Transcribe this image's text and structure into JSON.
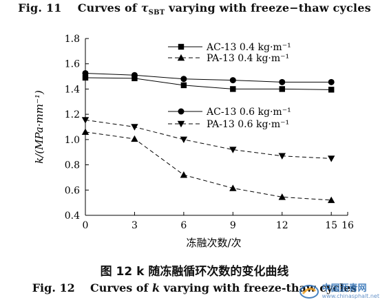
{
  "header": {
    "caption_prefix": "Fig. 11",
    "caption_before_symbol": "Curves of ",
    "caption_symbol": "τ",
    "caption_subscript": "SBT",
    "caption_after_symbol": " varying with freeze−thaw cycles"
  },
  "footer": {
    "cn_caption": "图 12   k 随冻融循环次数的变化曲线",
    "en_caption_prefix": "Fig. 12",
    "en_caption_before": "Curves of ",
    "en_caption_k": "k",
    "en_caption_after": " varying with freeze-thaw cycles"
  },
  "watermark": {
    "text": "中国沥青网",
    "url": "www.chinasphalt.net"
  },
  "chart_data": {
    "type": "line",
    "xlabel": "冻融次数/次",
    "ylabel": "k/(MPa·mm⁻¹)",
    "xlim": [
      0,
      16
    ],
    "ylim": [
      0.4,
      1.8
    ],
    "xticks": [
      0,
      3,
      6,
      9,
      12,
      15,
      16
    ],
    "yticks": [
      0.4,
      0.6,
      0.8,
      1.0,
      1.2,
      1.4,
      1.6,
      1.8
    ],
    "xtick_labels": [
      "0",
      "3",
      "6",
      "9",
      "12",
      "15",
      "16"
    ],
    "ytick_labels": [
      "0.4",
      "0.6",
      "0.8",
      "1.0",
      "1.2",
      "1.4",
      "1.6",
      "1.8"
    ],
    "grid": false,
    "legend_placement": "top-right, two groups",
    "series": [
      {
        "name": "AC-13 0.4 kg·m⁻¹",
        "marker": "square",
        "dash": "solid",
        "color": "#000000",
        "x": [
          0,
          3,
          6,
          9,
          12,
          15
        ],
        "y": [
          1.49,
          1.485,
          1.43,
          1.4,
          1.4,
          1.395
        ]
      },
      {
        "name": "PA-13 0.4 kg·m⁻¹",
        "marker": "triangle-up",
        "dash": "dashed",
        "color": "#000000",
        "x": [
          0,
          3,
          6,
          9,
          12,
          15
        ],
        "y": [
          1.06,
          1.005,
          0.72,
          0.615,
          0.545,
          0.52
        ]
      },
      {
        "name": "AC-13 0.6 kg·m⁻¹",
        "marker": "circle",
        "dash": "solid",
        "color": "#000000",
        "x": [
          0,
          3,
          6,
          9,
          12,
          15
        ],
        "y": [
          1.525,
          1.51,
          1.48,
          1.47,
          1.455,
          1.455
        ]
      },
      {
        "name": "PA-13 0.6 kg·m⁻¹",
        "marker": "triangle-down",
        "dash": "dashed",
        "color": "#000000",
        "x": [
          0,
          3,
          6,
          9,
          12,
          15
        ],
        "y": [
          1.155,
          1.1,
          1.0,
          0.92,
          0.87,
          0.85
        ]
      }
    ]
  }
}
